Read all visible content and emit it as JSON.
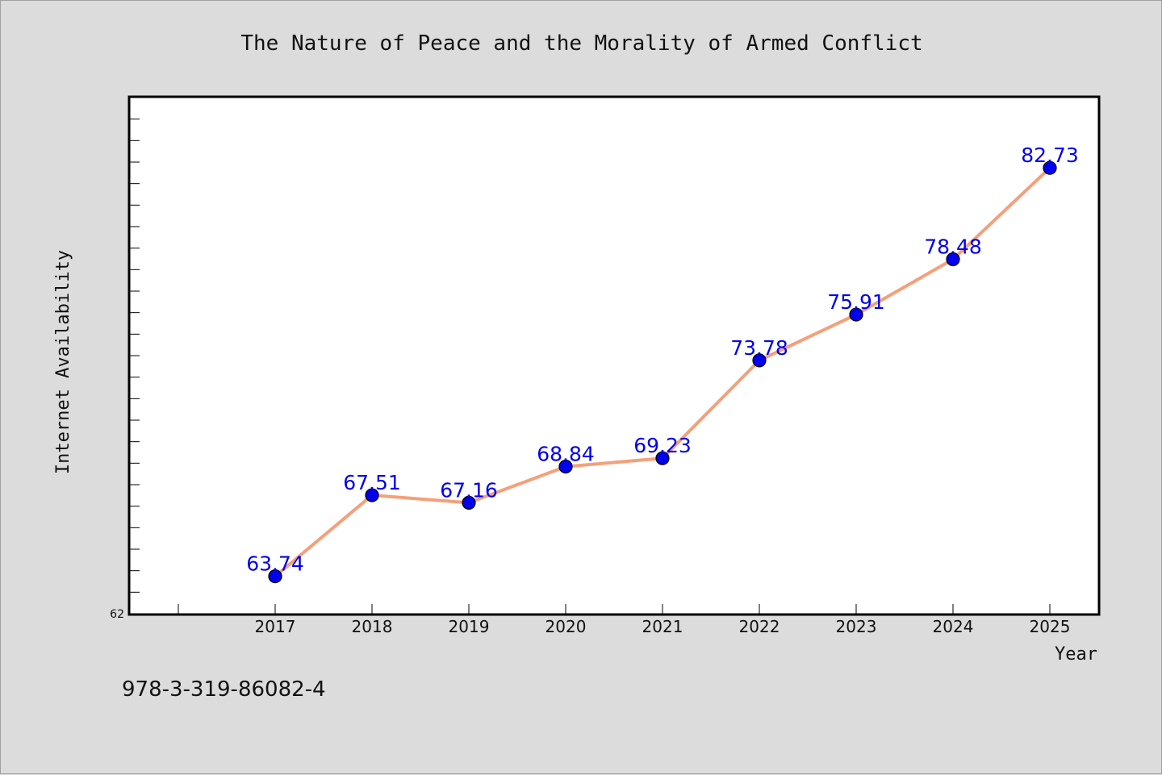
{
  "footer_text": "978-3-319-86082-4",
  "chart_data": {
    "type": "line",
    "title": "The Nature of Peace and the Morality of Armed Conflict",
    "xlabel": "Year",
    "ylabel": "Internet Availability",
    "categories": [
      "2017",
      "2018",
      "2019",
      "2020",
      "2021",
      "2022",
      "2023",
      "2024",
      "2025"
    ],
    "values": [
      63.74,
      67.51,
      67.16,
      68.84,
      69.23,
      73.78,
      75.91,
      78.48,
      82.73
    ],
    "data_labels": [
      "63.74",
      "67.51",
      "67.16",
      "68.84",
      "69.23",
      "73.78",
      "75.91",
      "78.48",
      "82.73"
    ],
    "ylim": [
      62,
      86
    ],
    "y_tick_labels": [
      "62"
    ],
    "grid": false,
    "legend": "none",
    "colors": {
      "line": "#f4a07a",
      "marker": "#0000ee",
      "data_label": "#0000ee",
      "plot_background": "#ffffff",
      "figure_background": "#dcdcdc"
    }
  }
}
